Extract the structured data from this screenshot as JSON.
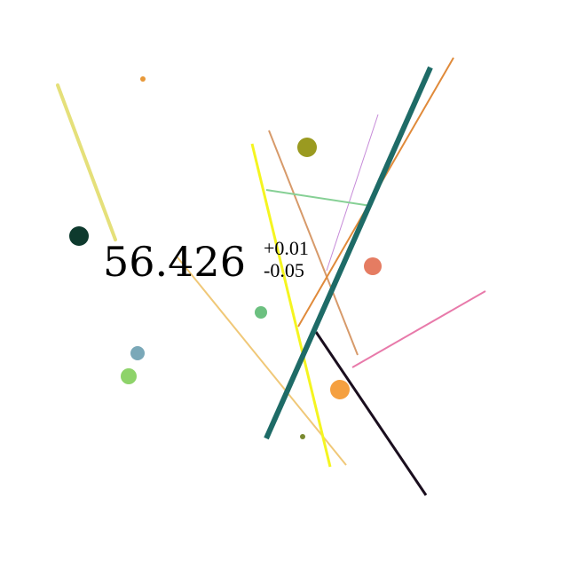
{
  "value": "56.426",
  "tolerance_upper": "+0.01",
  "tolerance_lower": "-0.05",
  "colors": {
    "background": "#ffffff",
    "text": "#000000",
    "pale_yellow_line": "#e5e07a",
    "thick_teal_line": "#1e6b67",
    "orange_line": "#e08a3a",
    "violet_line": "#c68ad8",
    "green_line": "#86d095",
    "tan_line": "#d79a6a",
    "yellow_line": "#f5f520",
    "wheat_line": "#f0c878",
    "pink_line": "#e87aaa",
    "black_line": "#1a0e1e",
    "dark_green_dot": "#0e3a2e",
    "olive_dot": "#9a9a20",
    "salmon_dot": "#e57c62",
    "orange_dot": "#f5a040",
    "mint_dot": "#6cc080",
    "steel_blue_dot": "#7aa8b8",
    "light_green_dot": "#8ed36a",
    "small_orange_dot": "#e89838",
    "tiny_olive_dot": "#7a8a30"
  }
}
